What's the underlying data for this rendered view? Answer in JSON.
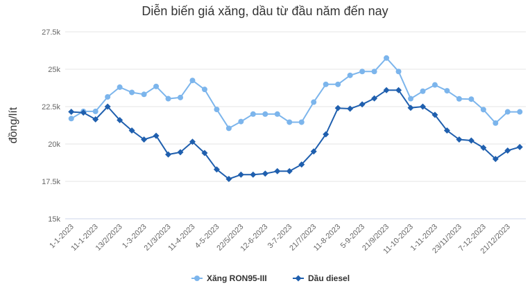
{
  "chart_data": {
    "type": "line",
    "title": "Diễn biến giá xăng, dầu từ đầu năm đến nay",
    "xlabel": "",
    "ylabel": "đồng/lít",
    "ylim": [
      15000,
      27500
    ],
    "yticks": [
      15000,
      17500,
      20000,
      22500,
      25000,
      27500
    ],
    "ytick_labels": [
      "15k",
      "17.5k",
      "20k",
      "22.5k",
      "25k",
      "27.5k"
    ],
    "categories": [
      "1-1-2023",
      "",
      "11-1-2023",
      "",
      "13/2/2023",
      "",
      "1-3-2023",
      "",
      "21/3/2023",
      "",
      "11-4-2023",
      "",
      "4-5-2023",
      "",
      "22/5/2023",
      "",
      "12-6-2023",
      "",
      "3-7-2023",
      "",
      "21/7/2023",
      "",
      "11-8-2023",
      "",
      "5-9-2023",
      "",
      "21/9/2023",
      "",
      "11-10-2023",
      "",
      "1-11-2023",
      "",
      "23/11/2023",
      "",
      "7-12-2023",
      "",
      "21/12/2023",
      ""
    ],
    "grid": true,
    "legend": "bottom-center",
    "series": [
      {
        "name": "Xăng RON95-III",
        "color": "#7cb5ec",
        "marker": "circle",
        "values": [
          21700,
          22180,
          22180,
          23150,
          23800,
          23450,
          23320,
          23850,
          23030,
          23110,
          24250,
          23650,
          22310,
          21050,
          21500,
          22000,
          22000,
          22000,
          21460,
          21460,
          22800,
          23990,
          23990,
          24590,
          24850,
          24850,
          25750,
          24850,
          23030,
          23530,
          23950,
          23560,
          23020,
          23000,
          22300,
          21400,
          22150,
          22150
        ]
      },
      {
        "name": "Dầu diesel",
        "color": "#1f5fae",
        "marker": "diamond",
        "values": [
          22150,
          22100,
          21650,
          22500,
          21600,
          20900,
          20300,
          20550,
          19300,
          19450,
          20150,
          19400,
          18300,
          17660,
          17950,
          17950,
          18020,
          18180,
          18180,
          18630,
          19500,
          20650,
          22400,
          22360,
          22650,
          23050,
          23600,
          23600,
          22420,
          22500,
          21950,
          20900,
          20300,
          20230,
          19750,
          19000,
          19560,
          19800
        ]
      }
    ]
  }
}
